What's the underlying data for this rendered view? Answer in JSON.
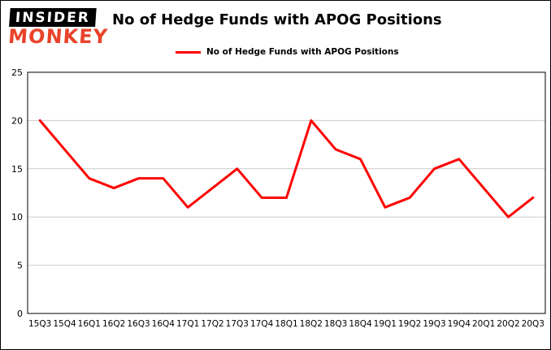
{
  "header": {
    "logo_line1": "INSIDER",
    "logo_line2": "MONKEY",
    "title": "No of Hedge Funds with APOG Positions",
    "legend_label": "No of Hedge Funds with APOG Positions"
  },
  "colors": {
    "series": "#ff0000",
    "grid": "#cccccc",
    "axis": "#000000",
    "logo_bg": "#000000",
    "logo_text": "#ffffff",
    "logo_accent": "#e8432a"
  },
  "chart_data": {
    "type": "line",
    "title": "No of Hedge Funds with APOG Positions",
    "categories": [
      "15Q3",
      "15Q4",
      "16Q1",
      "16Q2",
      "16Q3",
      "16Q4",
      "17Q1",
      "17Q2",
      "17Q3",
      "17Q4",
      "18Q1",
      "18Q2",
      "18Q3",
      "18Q4",
      "19Q1",
      "19Q2",
      "19Q3",
      "19Q4",
      "20Q1",
      "20Q2",
      "20Q3"
    ],
    "series": [
      {
        "name": "No of Hedge Funds with APOG Positions",
        "values": [
          20,
          17,
          14,
          13,
          14,
          14,
          11,
          13,
          15,
          12,
          12,
          20,
          17,
          16,
          11,
          12,
          15,
          16,
          13,
          10,
          12
        ]
      }
    ],
    "xlabel": "",
    "ylabel": "",
    "ylim": [
      0,
      25
    ],
    "yticks": [
      0,
      5,
      10,
      15,
      20,
      25
    ],
    "grid": true,
    "legend_position": "top"
  }
}
